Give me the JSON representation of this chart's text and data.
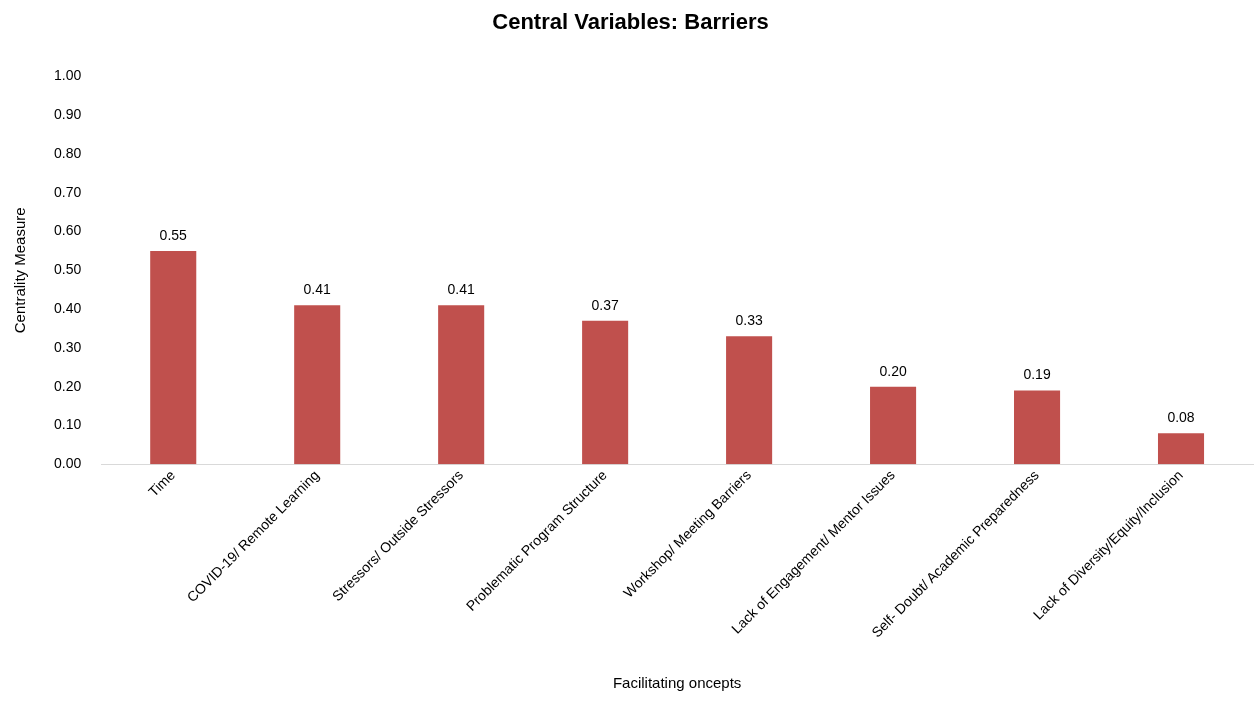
{
  "chart_data": {
    "type": "bar",
    "title": "Central Variables: Barriers",
    "xlabel": "Facilitating oncepts",
    "ylabel": "Centrality Measure",
    "categories": [
      "Time",
      "COVID-19/ Remote Learning",
      "Stressors/ Outside Stressors",
      "Problematic Program Structure",
      "Workshop/ Meeting Barriers",
      "Lack of Engagement/ Mentor Issues",
      "Self- Doubt/ Academic Preparedness",
      "Lack of Diversity/Equity/Inclusion"
    ],
    "values": [
      0.55,
      0.41,
      0.41,
      0.37,
      0.33,
      0.2,
      0.19,
      0.08
    ],
    "value_labels": [
      "0.55",
      "0.41",
      "0.41",
      "0.37",
      "0.33",
      "0.20",
      "0.19",
      "0.08"
    ],
    "color": "#c0504d",
    "ylim": [
      0,
      1
    ],
    "yticks": [
      {
        "value": 0,
        "label": "0.00"
      },
      {
        "value": 0.1,
        "label": "0.10"
      },
      {
        "value": 0.2,
        "label": "0.20"
      },
      {
        "value": 0.3,
        "label": "0.30"
      },
      {
        "value": 0.4,
        "label": "0.40"
      },
      {
        "value": 0.5,
        "label": "0.50"
      },
      {
        "value": 0.6,
        "label": "0.60"
      },
      {
        "value": 0.7,
        "label": "0.70"
      },
      {
        "value": 0.8,
        "label": "0.80"
      },
      {
        "value": 0.9,
        "label": "0.90"
      },
      {
        "value": 1,
        "label": "1.00"
      }
    ],
    "grid": false,
    "legend": false
  }
}
